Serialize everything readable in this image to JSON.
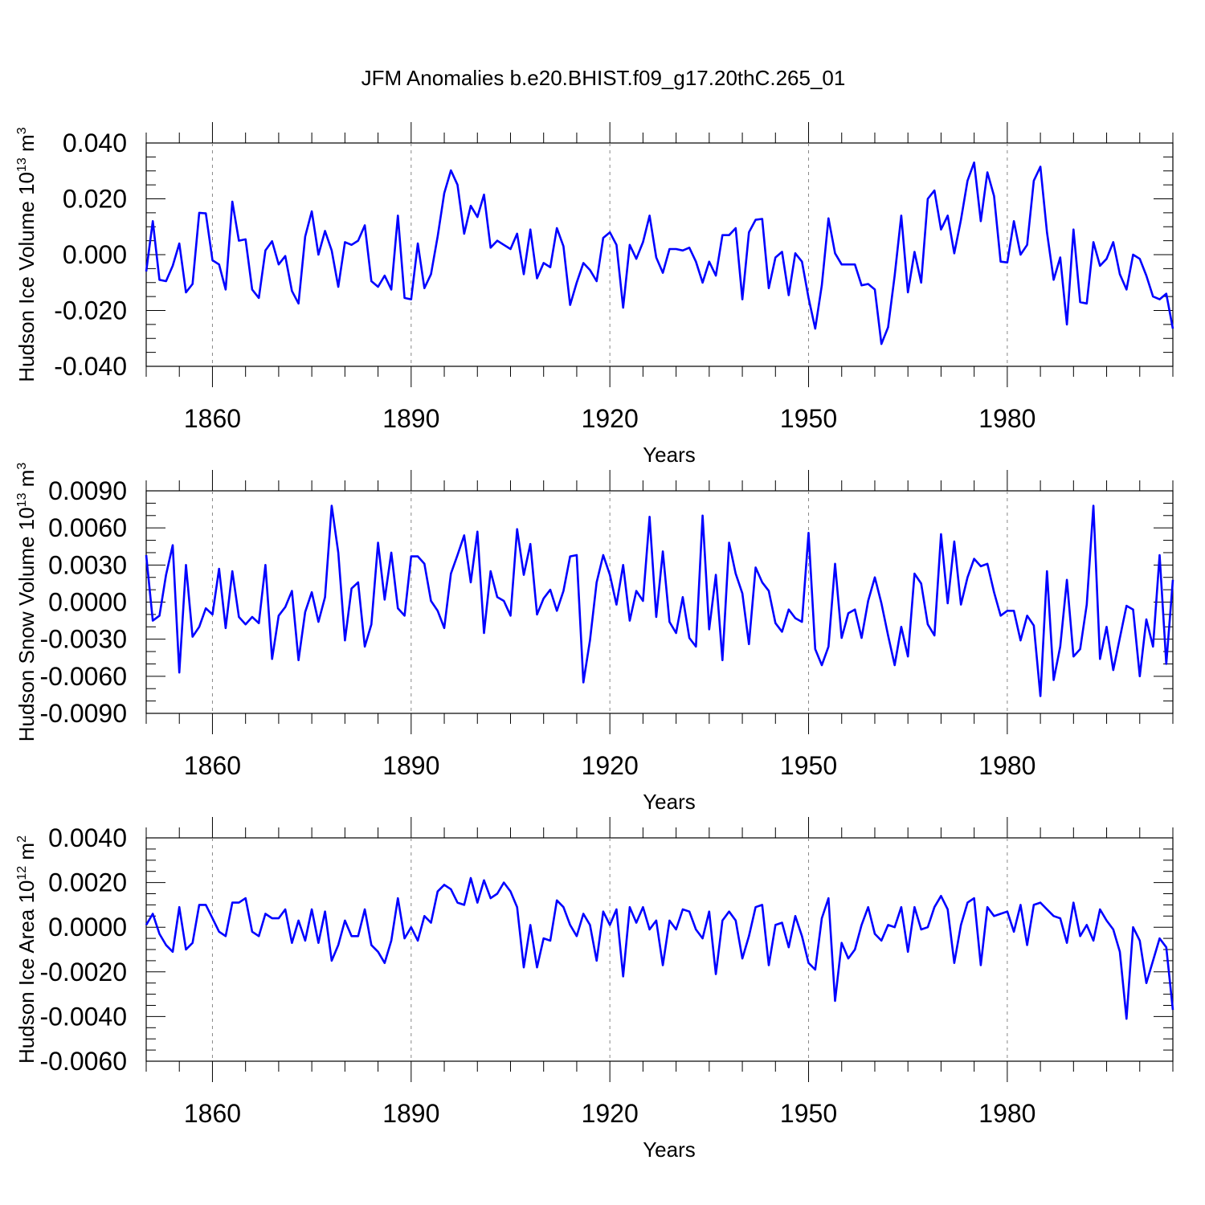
{
  "title": "JFM Anomalies b.e20.BHIST.f09_g17.20thC.265_01",
  "colors": {
    "series": "#0000ff",
    "axis": "#000000",
    "grid": "#888888"
  },
  "chart_data": [
    {
      "type": "line",
      "xlabel": "Years",
      "ylabel": {
        "text": "Hudson Ice Volume 10",
        "exp": "13",
        "unit": " m",
        "unit_exp": "3"
      },
      "xlim": [
        1850,
        2005
      ],
      "ylim": [
        -0.04,
        0.04
      ],
      "x_ticks": [
        1860,
        1890,
        1920,
        1950,
        1980
      ],
      "x_tick_labels": [
        "1860",
        "1890",
        "1920",
        "1950",
        "1980"
      ],
      "y_ticks": [
        -0.04,
        -0.02,
        0.0,
        0.02,
        0.04
      ],
      "y_tick_labels": [
        "-0.040",
        "-0.020",
        "0.000",
        "0.020",
        "0.040"
      ],
      "x_start": 1850,
      "series": [
        {
          "name": "Hudson Ice Volume",
          "values": [
            -0.006,
            0.012,
            -0.009,
            -0.0095,
            -0.004,
            0.004,
            -0.0135,
            -0.0105,
            0.015,
            0.0148,
            -0.002,
            -0.0035,
            -0.0125,
            0.019,
            0.005,
            0.0055,
            -0.0125,
            -0.0155,
            0.0015,
            0.0048,
            -0.0035,
            -0.0005,
            -0.013,
            -0.0175,
            0.0065,
            0.0155,
            0.0,
            0.0085,
            0.0015,
            -0.0115,
            0.0045,
            0.0035,
            0.005,
            0.0105,
            -0.0095,
            -0.0115,
            -0.0075,
            -0.0125,
            0.014,
            -0.0155,
            -0.016,
            0.004,
            -0.012,
            -0.007,
            0.0065,
            0.022,
            0.0302,
            0.025,
            0.0075,
            0.0175,
            0.0135,
            0.0215,
            0.0025,
            0.005,
            0.0035,
            0.002,
            0.0075,
            -0.007,
            0.009,
            -0.0085,
            -0.003,
            -0.0045,
            0.0095,
            0.003,
            -0.018,
            -0.01,
            -0.003,
            -0.0055,
            -0.0095,
            0.006,
            0.008,
            0.0035,
            -0.019,
            0.0035,
            -0.0015,
            0.0045,
            0.014,
            -0.001,
            -0.0065,
            0.002,
            0.002,
            0.0015,
            0.0025,
            -0.0025,
            -0.01,
            -0.0025,
            -0.0075,
            0.007,
            0.007,
            0.0095,
            -0.016,
            0.008,
            0.0125,
            0.0128,
            -0.012,
            -0.001,
            0.001,
            -0.0145,
            0.0005,
            -0.0025,
            -0.0155,
            -0.0265,
            -0.011,
            0.013,
            0.0005,
            -0.0035,
            -0.0035,
            -0.0035,
            -0.011,
            -0.0105,
            -0.0125,
            -0.032,
            -0.026,
            -0.0075,
            0.014,
            -0.0135,
            0.001,
            -0.01,
            0.02,
            0.023,
            0.009,
            0.014,
            0.0005,
            0.0125,
            0.0265,
            0.033,
            0.012,
            0.0295,
            0.021,
            -0.0025,
            -0.0028,
            0.012,
            0.0,
            0.0035,
            0.0265,
            0.0315,
            0.008,
            -0.009,
            -0.001,
            -0.025,
            0.009,
            -0.017,
            -0.0175,
            0.0045,
            -0.004,
            -0.0015,
            0.0045,
            -0.007,
            -0.0125,
            0.0,
            -0.0015,
            -0.0075,
            -0.015,
            -0.016,
            -0.014,
            -0.0265
          ]
        }
      ]
    },
    {
      "type": "line",
      "xlabel": "Years",
      "ylabel": {
        "text": "Hudson Snow Volume 10",
        "exp": "13",
        "unit": " m",
        "unit_exp": "3"
      },
      "xlim": [
        1850,
        2005
      ],
      "ylim": [
        -0.009,
        0.009
      ],
      "x_ticks": [
        1860,
        1890,
        1920,
        1950,
        1980
      ],
      "x_tick_labels": [
        "1860",
        "1890",
        "1920",
        "1950",
        "1980"
      ],
      "y_ticks": [
        -0.009,
        -0.006,
        -0.003,
        0.0,
        0.003,
        0.006,
        0.009
      ],
      "y_tick_labels": [
        "-0.0090",
        "-0.0060",
        "-0.0030",
        "0.0000",
        "0.0030",
        "0.0060",
        "0.0090"
      ],
      "x_start": 1850,
      "series": [
        {
          "name": "Hudson Snow Volume",
          "values": [
            0.0038,
            -0.0015,
            -0.0011,
            0.0022,
            0.0046,
            -0.0057,
            0.003,
            -0.0028,
            -0.002,
            -0.0005,
            -0.001,
            0.0027,
            -0.0021,
            0.0025,
            -0.0012,
            -0.0018,
            -0.0012,
            -0.0017,
            0.003,
            -0.0046,
            -0.0011,
            -0.0004,
            0.0009,
            -0.0047,
            -0.0008,
            0.0008,
            -0.0016,
            0.0004,
            0.0078,
            0.004,
            -0.0031,
            0.0011,
            0.0016,
            -0.0036,
            -0.0018,
            0.0048,
            0.0002,
            0.004,
            -0.0005,
            -0.0011,
            0.0037,
            0.0037,
            0.0031,
            0.0001,
            -0.0007,
            -0.0021,
            0.0023,
            0.0038,
            0.0054,
            0.0016,
            0.0057,
            -0.0025,
            0.0025,
            0.0004,
            0.0001,
            -0.0011,
            0.0059,
            0.0022,
            0.0047,
            -0.001,
            0.0003,
            0.001,
            -0.0007,
            0.0009,
            0.0037,
            0.0038,
            -0.0065,
            -0.0031,
            0.0016,
            0.0038,
            0.0022,
            -0.0002,
            0.003,
            -0.0015,
            0.0009,
            0.0001,
            0.0069,
            -0.0012,
            0.0041,
            -0.0016,
            -0.0025,
            0.0004,
            -0.0029,
            -0.0036,
            0.007,
            -0.0022,
            0.0022,
            -0.0047,
            0.0048,
            0.0023,
            0.0007,
            -0.0034,
            0.0028,
            0.0016,
            0.0009,
            -0.0017,
            -0.0024,
            -0.0006,
            -0.0013,
            -0.0016,
            0.0056,
            -0.0038,
            -0.0051,
            -0.0036,
            0.0031,
            -0.0029,
            -0.0009,
            -0.0006,
            -0.0029,
            0.0001,
            0.002,
            -0.0001,
            -0.0027,
            -0.0051,
            -0.002,
            -0.0044,
            0.0023,
            0.0015,
            -0.0018,
            -0.0027,
            0.0055,
            -0.0001,
            0.0049,
            -0.0002,
            0.002,
            0.0035,
            0.0029,
            0.0031,
            0.0008,
            -0.0011,
            -0.0007,
            -0.0007,
            -0.0031,
            -0.0011,
            -0.0019,
            -0.0076,
            0.0025,
            -0.0063,
            -0.0036,
            0.0018,
            -0.0044,
            -0.0038,
            -0.0002,
            0.0078,
            -0.0046,
            -0.002,
            -0.0055,
            -0.0029,
            -0.0003,
            -0.0006,
            -0.006,
            -0.0014,
            -0.0036,
            0.0038,
            -0.005,
            0.0018
          ]
        }
      ]
    },
    {
      "type": "line",
      "xlabel": "Years",
      "ylabel": {
        "text": "Hudson Ice Area 10",
        "exp": "12",
        "unit": " m",
        "unit_exp": "2"
      },
      "xlim": [
        1850,
        2005
      ],
      "ylim": [
        -0.006,
        0.004
      ],
      "x_ticks": [
        1860,
        1890,
        1920,
        1950,
        1980
      ],
      "x_tick_labels": [
        "1860",
        "1890",
        "1920",
        "1950",
        "1980"
      ],
      "y_ticks": [
        -0.006,
        -0.004,
        -0.002,
        0.0,
        0.002,
        0.004
      ],
      "y_tick_labels": [
        "-0.0060",
        "-0.0040",
        "-0.0020",
        "0.0000",
        "0.0020",
        "0.0040"
      ],
      "x_start": 1850,
      "series": [
        {
          "name": "Hudson Ice Area",
          "values": [
            0.0001,
            0.0006,
            -0.0003,
            -0.0008,
            -0.0011,
            0.0009,
            -0.001,
            -0.0007,
            0.001,
            0.001,
            0.0004,
            -0.0002,
            -0.0004,
            0.0011,
            0.0011,
            0.0013,
            -0.0002,
            -0.0004,
            0.0006,
            0.0004,
            0.0004,
            0.0008,
            -0.0007,
            0.0003,
            -0.0006,
            0.0008,
            -0.0007,
            0.0007,
            -0.0015,
            -0.0008,
            0.0003,
            -0.0004,
            -0.0004,
            0.0008,
            -0.0008,
            -0.0011,
            -0.0016,
            -0.0006,
            0.0013,
            -0.0005,
            0.0,
            -0.0006,
            0.0005,
            0.0002,
            0.0016,
            0.0019,
            0.0017,
            0.0011,
            0.001,
            0.0022,
            0.0011,
            0.0021,
            0.0013,
            0.0015,
            0.002,
            0.0016,
            0.0009,
            -0.0018,
            0.0001,
            -0.0018,
            -0.0005,
            -0.0006,
            0.0012,
            0.0009,
            0.0001,
            -0.0004,
            0.0006,
            0.0001,
            -0.0015,
            0.0007,
            0.0001,
            0.0008,
            -0.0022,
            0.0009,
            0.0002,
            0.0009,
            -0.0001,
            0.0003,
            -0.0017,
            0.0003,
            -0.0001,
            0.0008,
            0.0007,
            -0.0001,
            -0.0005,
            0.0007,
            -0.0021,
            0.0003,
            0.0007,
            0.0003,
            -0.0014,
            -0.0004,
            0.0009,
            0.001,
            -0.0017,
            0.0001,
            0.0002,
            -0.0009,
            0.0005,
            -0.0004,
            -0.0016,
            -0.0019,
            0.0004,
            0.0013,
            -0.0033,
            -0.0007,
            -0.0014,
            -0.001,
            0.0001,
            0.0009,
            -0.0003,
            -0.0006,
            0.0001,
            0.0,
            0.0009,
            -0.0011,
            0.0009,
            -0.0001,
            0.0,
            0.0009,
            0.0014,
            0.0008,
            -0.0016,
            0.0001,
            0.0011,
            0.0013,
            -0.0017,
            0.0009,
            0.0005,
            0.0006,
            0.0007,
            -0.0002,
            0.001,
            -0.0008,
            0.001,
            0.0011,
            0.0008,
            0.0005,
            0.0004,
            -0.0007,
            0.0011,
            -0.0004,
            0.0001,
            -0.0006,
            0.0008,
            0.0003,
            -0.0001,
            -0.0011,
            -0.0041,
            0.0,
            -0.0006,
            -0.0025,
            -0.0015,
            -0.0005,
            -0.0009,
            -0.0037
          ]
        }
      ]
    }
  ]
}
